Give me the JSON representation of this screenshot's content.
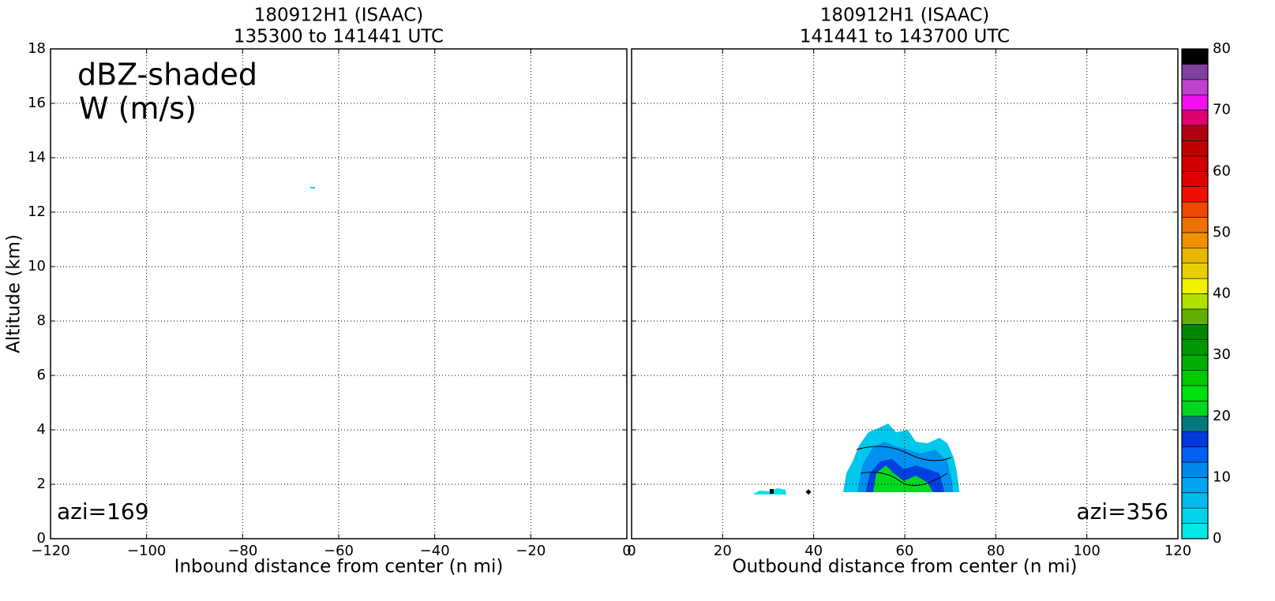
{
  "chart_data": [
    {
      "type": "contour",
      "title": "180912H1 (ISAAC)",
      "subtitle": "135300 to 141441 UTC",
      "xlabel": "Inbound distance from center (n mi)",
      "ylabel": "Altitude (km)",
      "xlim": [
        -120,
        0
      ],
      "xticks": [
        {
          "value": -120,
          "label": "−120"
        },
        {
          "value": -100,
          "label": "−100"
        },
        {
          "value": -80,
          "label": "−80"
        },
        {
          "value": -60,
          "label": "−60"
        },
        {
          "value": -40,
          "label": "−40"
        },
        {
          "value": -20,
          "label": "−20"
        },
        0
      ],
      "ylim": [
        0,
        18
      ],
      "yticks": [
        0,
        2,
        4,
        6,
        8,
        10,
        12,
        14,
        16,
        18
      ],
      "grid": true,
      "annotations": [
        "dBZ-shaded",
        "W (m/s)",
        "azi=169"
      ]
    },
    {
      "type": "contour",
      "title": "180912H1 (ISAAC)",
      "subtitle": "141441 to 143700 UTC",
      "xlabel": "Outbound distance from center (n mi)",
      "xlim": [
        0,
        120
      ],
      "xticks": [
        0,
        20,
        40,
        60,
        80,
        100,
        120
      ],
      "ylim": [
        0,
        18
      ],
      "yticks": [
        0,
        2,
        4,
        6,
        8,
        10,
        12,
        14,
        16,
        18
      ],
      "grid": true,
      "annotations": [
        "azi=356"
      ]
    },
    {
      "type": "colorbar",
      "lim": [
        0,
        80
      ],
      "ticks": [
        0,
        10,
        20,
        30,
        40,
        50,
        60,
        70,
        80
      ],
      "colors": [
        "#00e8e8",
        "#00d4ea",
        "#00bcee",
        "#00a4f0",
        "#0088f0",
        "#0060f0",
        "#0038e0",
        "#007880",
        "#00d820",
        "#00e010",
        "#00c800",
        "#00b000",
        "#009800",
        "#008800",
        "#60b000",
        "#b0e000",
        "#f0f000",
        "#e8d000",
        "#e8b800",
        "#f09000",
        "#f07000",
        "#f04800",
        "#f01000",
        "#e00000",
        "#d00000",
        "#c00000",
        "#b00010",
        "#e00070",
        "#f010f0",
        "#c040d0",
        "#8040a0",
        "#000000"
      ]
    }
  ]
}
